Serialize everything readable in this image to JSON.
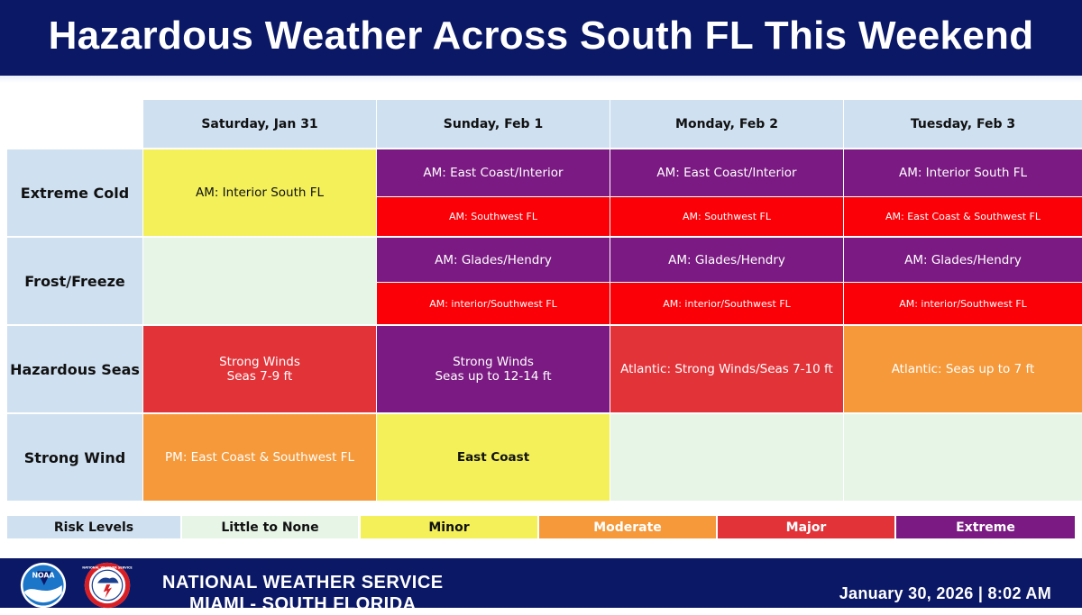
{
  "header": {
    "title": "Hazardous Weather Across South FL This Weekend"
  },
  "columns": [
    "Saturday, Jan 31",
    "Sunday, Feb 1",
    "Monday, Feb 2",
    "Tuesday, Feb 3"
  ],
  "rows": [
    {
      "label": "Extreme Cold",
      "cells": [
        {
          "text": "AM: Interior South FL",
          "level": "Minor"
        },
        {
          "top": {
            "text": "AM: East Coast/Interior",
            "level": "Extreme"
          },
          "bottom": {
            "text": "AM: Southwest FL",
            "level": "Red"
          }
        },
        {
          "top": {
            "text": "AM: East Coast/Interior",
            "level": "Extreme"
          },
          "bottom": {
            "text": "AM: Southwest FL",
            "level": "Red"
          }
        },
        {
          "top": {
            "text": "AM: Interior South FL",
            "level": "Extreme"
          },
          "bottom": {
            "text": "AM: East Coast & Southwest FL",
            "level": "Red"
          }
        }
      ]
    },
    {
      "label": "Frost/Freeze",
      "cells": [
        {
          "text": "",
          "level": "Little to None"
        },
        {
          "top": {
            "text": "AM: Glades/Hendry",
            "level": "Extreme"
          },
          "bottom": {
            "text": "AM: interior/Southwest FL",
            "level": "Red"
          }
        },
        {
          "top": {
            "text": "AM: Glades/Hendry",
            "level": "Extreme"
          },
          "bottom": {
            "text": "AM: interior/Southwest FL",
            "level": "Red"
          }
        },
        {
          "top": {
            "text": "AM: Glades/Hendry",
            "level": "Extreme"
          },
          "bottom": {
            "text": "AM: interior/Southwest FL",
            "level": "Red"
          }
        }
      ]
    },
    {
      "label": "Hazardous Seas",
      "cells": [
        {
          "text": "Strong Winds\nSeas 7-9 ft",
          "level": "Major"
        },
        {
          "text": "Strong Winds\nSeas up to 12-14 ft",
          "level": "Extreme"
        },
        {
          "text": "Atlantic: Strong Winds/Seas  7-10 ft",
          "level": "Major"
        },
        {
          "text": "Atlantic: Seas up to 7 ft",
          "level": "Moderate"
        }
      ]
    },
    {
      "label": "Strong Wind",
      "cells": [
        {
          "text": "PM: East Coast & Southwest FL",
          "level": "Moderate"
        },
        {
          "text": "East Coast",
          "level": "Minor"
        },
        {
          "text": "",
          "level": "Little to None"
        },
        {
          "text": "",
          "level": "Little to None"
        }
      ]
    }
  ],
  "legend": {
    "title": "Risk Levels",
    "items": [
      {
        "label": "Little to None",
        "color": "#e6f5e6",
        "text_color": "#111111"
      },
      {
        "label": "Minor",
        "color": "#f3f05a",
        "text_color": "#111111"
      },
      {
        "label": "Moderate",
        "color": "#f5993a",
        "text_color": "#ffffff"
      },
      {
        "label": "Major",
        "color": "#e23339",
        "text_color": "#ffffff"
      },
      {
        "label": "Extreme",
        "color": "#7a1a82",
        "text_color": "#ffffff"
      }
    ]
  },
  "footer": {
    "office_line1": "NATIONAL WEATHER SERVICE",
    "office_line2": "MIAMI - SOUTH FLORIDA",
    "datetime": "January 30, 2026 | 8:02 AM",
    "logos": [
      {
        "icon": "noaa-logo",
        "text": "NOAA"
      },
      {
        "icon": "nws-logo",
        "text": "NATIONAL WEATHER SERVICE"
      }
    ]
  },
  "colors": {
    "header_bg": "#0b1866",
    "header_text": "#ffffff",
    "label_bg": "#cfe0f1"
  }
}
